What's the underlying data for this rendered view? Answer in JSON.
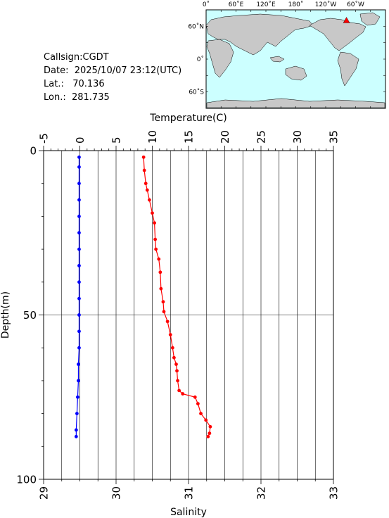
{
  "station": {
    "callsign": "Callsign:CGDT",
    "date": "Date:  2025/10/07 23:12(UTC)",
    "lat": "Lat.:   70.136",
    "lon": "Lon.:  281.735"
  },
  "colors": {
    "temperature": "#0000ff",
    "salinity": "#ff0000",
    "land": "#c8c8c8",
    "ocean": "#ccffff",
    "marker": "#ff0000"
  },
  "map": {
    "top_labels": [
      "0˚",
      "60˚E",
      "120˚E",
      "180˚",
      "120˚W",
      "60˚W"
    ],
    "lat_labels": [
      "60˚N",
      "0˚",
      "60˚S"
    ],
    "station_marker": {
      "lon": 281.735,
      "lat": 70.136
    }
  },
  "chart_data": {
    "type": "line",
    "title": "",
    "grid": true,
    "y_axis": {
      "label": "Depth(m)",
      "range": [
        0,
        100
      ],
      "ticks": [
        0,
        50,
        100
      ],
      "inverted": true
    },
    "x_top_axis": {
      "label": "Temperature(C)",
      "range": [
        -5,
        35
      ],
      "ticks": [
        -5,
        0,
        5,
        10,
        15,
        20,
        25,
        30,
        35
      ]
    },
    "x_bottom_axis": {
      "label": "Salinity",
      "range": [
        29,
        33
      ],
      "ticks": [
        29,
        30,
        31,
        32,
        33
      ]
    },
    "series": [
      {
        "color": "blue",
        "axis": "top",
        "points": [
          [
            -0.1,
            2
          ],
          [
            -0.1,
            5
          ],
          [
            -0.1,
            10
          ],
          [
            -0.1,
            15
          ],
          [
            -0.1,
            20
          ],
          [
            -0.1,
            25
          ],
          [
            -0.1,
            30
          ],
          [
            -0.1,
            35
          ],
          [
            -0.1,
            40
          ],
          [
            -0.1,
            45
          ],
          [
            -0.1,
            50
          ],
          [
            -0.1,
            55
          ],
          [
            -0.1,
            60
          ],
          [
            -0.2,
            65
          ],
          [
            -0.2,
            70
          ],
          [
            -0.3,
            75
          ],
          [
            -0.4,
            80
          ],
          [
            -0.5,
            85
          ],
          [
            -0.5,
            87
          ]
        ]
      },
      {
        "color": "red",
        "axis": "bottom",
        "points": [
          [
            30.38,
            2
          ],
          [
            30.39,
            6
          ],
          [
            30.41,
            10
          ],
          [
            30.43,
            12
          ],
          [
            30.46,
            15
          ],
          [
            30.5,
            19
          ],
          [
            30.53,
            22
          ],
          [
            30.54,
            27
          ],
          [
            30.55,
            30
          ],
          [
            30.59,
            33
          ],
          [
            30.61,
            37
          ],
          [
            30.62,
            42
          ],
          [
            30.65,
            46
          ],
          [
            30.66,
            49
          ],
          [
            30.71,
            52
          ],
          [
            30.75,
            56
          ],
          [
            30.78,
            60
          ],
          [
            30.8,
            63
          ],
          [
            30.83,
            65
          ],
          [
            30.84,
            67
          ],
          [
            30.85,
            70
          ],
          [
            30.87,
            73
          ],
          [
            30.92,
            74
          ],
          [
            31.09,
            75
          ],
          [
            31.13,
            77
          ],
          [
            31.17,
            80
          ],
          [
            31.24,
            82
          ],
          [
            31.3,
            84
          ],
          [
            31.29,
            86
          ],
          [
            31.27,
            87
          ]
        ]
      }
    ]
  }
}
